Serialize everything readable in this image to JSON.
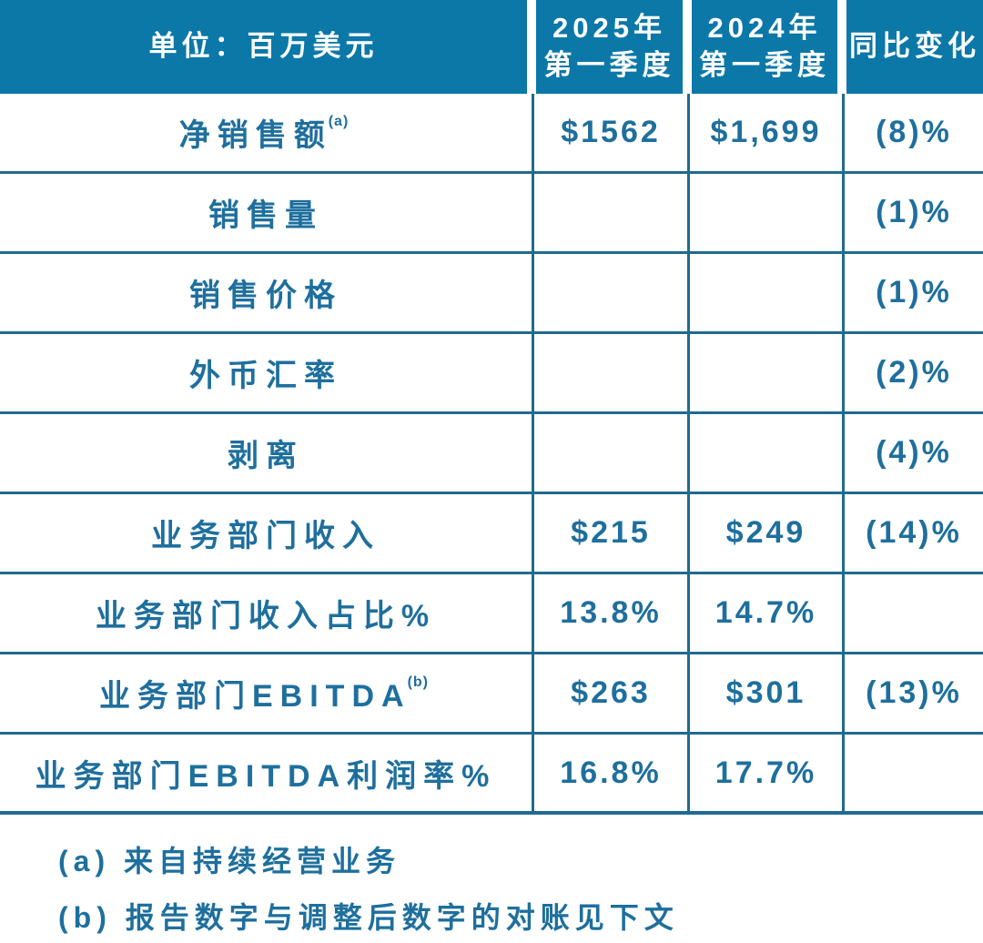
{
  "header": {
    "unit_label": "单位：百万美元",
    "col_2025_line1": "2025年",
    "col_2025_line2": "第一季度",
    "col_2024_line1": "2024年",
    "col_2024_line2": "第一季度",
    "yoy_label": "同比变化"
  },
  "rows": [
    {
      "label": "净销售额",
      "sup": "(a)",
      "q1_2025": "$1562",
      "q1_2024": "$1,699",
      "yoy": "(8)%"
    },
    {
      "label": "销售量",
      "sup": "",
      "q1_2025": "",
      "q1_2024": "",
      "yoy": "(1)%"
    },
    {
      "label": "销售价格",
      "sup": "",
      "q1_2025": "",
      "q1_2024": "",
      "yoy": "(1)%"
    },
    {
      "label": "外币汇率",
      "sup": "",
      "q1_2025": "",
      "q1_2024": "",
      "yoy": "(2)%"
    },
    {
      "label": "剥离",
      "sup": "",
      "q1_2025": "",
      "q1_2024": "",
      "yoy": "(4)%"
    },
    {
      "label": "业务部门收入",
      "sup": "",
      "q1_2025": "$215",
      "q1_2024": "$249",
      "yoy": "(14)%"
    },
    {
      "label": "业务部门收入占比%",
      "sup": "",
      "q1_2025": "13.8%",
      "q1_2024": "14.7%",
      "yoy": ""
    },
    {
      "label": "业务部门EBITDA",
      "sup": "(b)",
      "q1_2025": "$263",
      "q1_2024": "$301",
      "yoy": "(13)%"
    },
    {
      "label": "业务部门EBITDA利润率%",
      "sup": "",
      "q1_2025": "16.8%",
      "q1_2024": "17.7%",
      "yoy": ""
    }
  ],
  "footnotes": [
    "(a) 来自持续经营业务",
    "(b) 报告数字与调整后数字的对账见下文"
  ],
  "colors": {
    "header_bg": "#0b78a8",
    "text": "#1e6f9d",
    "line": "#1f6b8f",
    "page_bg": "#ffffff"
  }
}
